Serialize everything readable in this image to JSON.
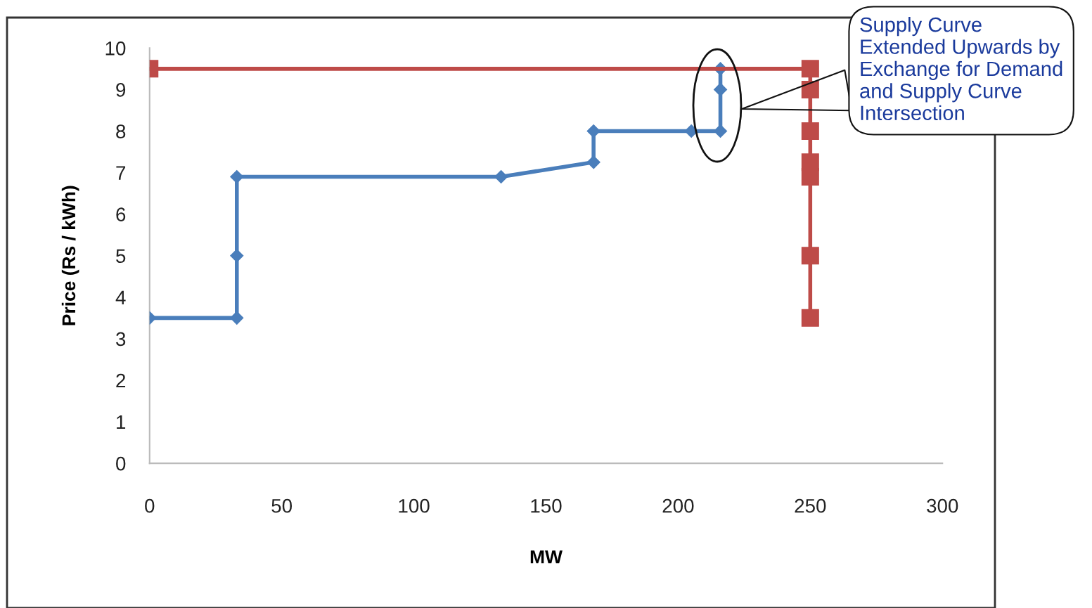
{
  "chart_data": {
    "type": "line",
    "xlabel": "MW",
    "ylabel": "Price (Rs / kWh)",
    "xlim": [
      0,
      300
    ],
    "xticks": [
      0,
      50,
      100,
      150,
      200,
      250,
      300
    ],
    "ylim": [
      0,
      10
    ],
    "yticks": [
      0,
      1,
      2,
      3,
      4,
      5,
      6,
      7,
      8,
      9,
      10
    ],
    "grid": false,
    "legend": false,
    "line_style": "solid",
    "series": [
      {
        "color": "#4a7ebb",
        "marker": "diamond",
        "x": [
          0,
          33,
          33,
          33,
          133,
          168,
          168,
          205,
          216,
          216,
          216
        ],
        "values": [
          3.5,
          3.5,
          5,
          6.9,
          6.9,
          7.25,
          8,
          8,
          8,
          9,
          9.5
        ]
      },
      {
        "color": "#be4b48",
        "marker": "square",
        "x": [
          0,
          250,
          250,
          250,
          250,
          250,
          250,
          250
        ],
        "values": [
          9.5,
          9.5,
          9,
          8,
          7.25,
          6.9,
          5,
          3.5
        ]
      }
    ],
    "annotations": [
      "Supply Curve\nExtended Upwards by\nExchange for Demand\nand Supply Curve\nIntersection"
    ]
  }
}
